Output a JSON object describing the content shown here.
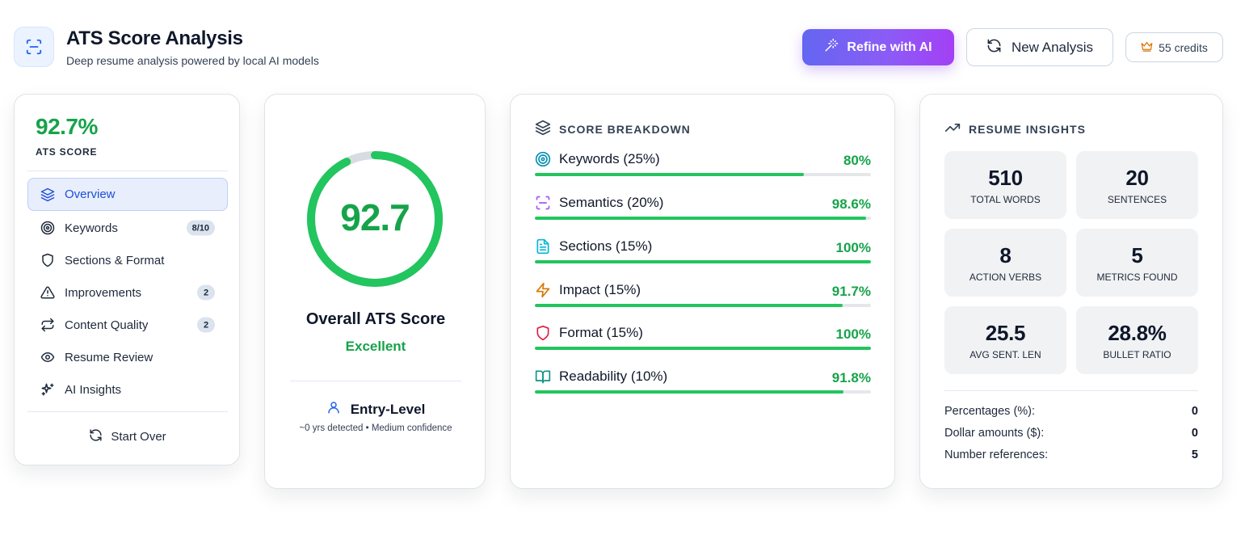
{
  "header": {
    "title": "ATS Score Analysis",
    "subtitle": "Deep resume analysis powered by local AI models",
    "refine_label": "Refine with AI",
    "new_analysis_label": "New Analysis",
    "credits_label": "55 credits"
  },
  "sidebar": {
    "score": "92.7%",
    "score_label": "ATS SCORE",
    "items": [
      {
        "label": "Overview",
        "icon": "layers-icon",
        "badge": null,
        "active": true
      },
      {
        "label": "Keywords",
        "icon": "target-icon",
        "badge": "8/10",
        "active": false
      },
      {
        "label": "Sections & Format",
        "icon": "shield-icon",
        "badge": null,
        "active": false
      },
      {
        "label": "Improvements",
        "icon": "warning-icon",
        "badge": "2",
        "active": false
      },
      {
        "label": "Content Quality",
        "icon": "repeat-icon",
        "badge": "2",
        "active": false
      },
      {
        "label": "Resume Review",
        "icon": "eye-icon",
        "badge": null,
        "active": false
      },
      {
        "label": "AI Insights",
        "icon": "sparkles-icon",
        "badge": null,
        "active": false
      }
    ],
    "start_over_label": "Start Over"
  },
  "score_card": {
    "value": "92.7",
    "fraction": 0.927,
    "title": "Overall ATS Score",
    "rating": "Excellent",
    "level": "Entry-Level",
    "level_detail": "~0 yrs detected • Medium confidence"
  },
  "breakdown": {
    "heading": "SCORE BREAKDOWN",
    "items": [
      {
        "label": "Keywords (25%)",
        "value": "80%",
        "percent": 80,
        "icon": "target-icon",
        "color": "#0891b2"
      },
      {
        "label": "Semantics (20%)",
        "value": "98.6%",
        "percent": 98.6,
        "icon": "scan-icon",
        "color": "#a855f7"
      },
      {
        "label": "Sections (15%)",
        "value": "100%",
        "percent": 100,
        "icon": "document-icon",
        "color": "#06b6d4"
      },
      {
        "label": "Impact (15%)",
        "value": "91.7%",
        "percent": 91.7,
        "icon": "lightning-icon",
        "color": "#d97706"
      },
      {
        "label": "Format (15%)",
        "value": "100%",
        "percent": 100,
        "icon": "shield-icon",
        "color": "#e11d48"
      },
      {
        "label": "Readability (10%)",
        "value": "91.8%",
        "percent": 91.8,
        "icon": "book-icon",
        "color": "#0d9488"
      }
    ]
  },
  "insights": {
    "heading": "RESUME INSIGHTS",
    "stats": [
      {
        "value": "510",
        "label": "TOTAL WORDS"
      },
      {
        "value": "20",
        "label": "SENTENCES"
      },
      {
        "value": "8",
        "label": "ACTION VERBS"
      },
      {
        "value": "5",
        "label": "METRICS FOUND"
      },
      {
        "value": "25.5",
        "label": "AVG SENT. LEN"
      },
      {
        "value": "28.8%",
        "label": "BULLET RATIO"
      }
    ],
    "metrics": [
      {
        "label": "Percentages (%):",
        "value": "0"
      },
      {
        "label": "Dollar amounts ($):",
        "value": "0"
      },
      {
        "label": "Number references:",
        "value": "5"
      }
    ]
  },
  "colors": {
    "accent_green": "#16a34a",
    "bar_green": "#22c55e",
    "nav_active": "#1d4ed8",
    "brand_gradient_start": "#6366f1",
    "brand_gradient_end": "#a340f5"
  }
}
